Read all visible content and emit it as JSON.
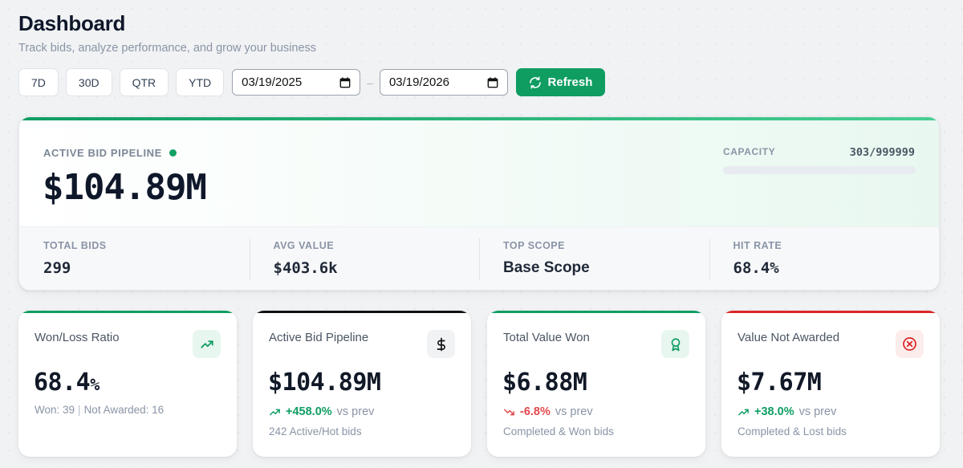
{
  "header": {
    "title": "Dashboard",
    "subtitle": "Track bids, analyze performance, and grow your business"
  },
  "toolbar": {
    "ranges": [
      "7D",
      "30D",
      "QTR",
      "YTD"
    ],
    "date_from": "03/19/2025",
    "date_separator": "–",
    "date_to": "03/19/2026",
    "refresh_label": "Refresh"
  },
  "hero": {
    "label": "ACTIVE BID PIPELINE",
    "value": "$104.89M",
    "capacity_label": "CAPACITY",
    "capacity_value": "303/999999",
    "capacity_fraction": 0.000303,
    "stats": [
      {
        "label": "TOTAL BIDS",
        "value": "299"
      },
      {
        "label": "AVG VALUE",
        "value": "$403.6k"
      },
      {
        "label": "TOP SCOPE",
        "value": "Base Scope"
      },
      {
        "label": "HIT RATE",
        "value": "68.4%"
      }
    ]
  },
  "cards": {
    "winloss": {
      "title": "Won/Loss Ratio",
      "value": "68.4",
      "value_suffix": "%",
      "won": "Won: 39",
      "divider": "|",
      "not_awarded": "Not Awarded: 16",
      "icon": "trending-up-icon",
      "accent": "#0f9d62"
    },
    "pipeline": {
      "title": "Active Bid Pipeline",
      "value": "$104.89M",
      "delta": "+458.0%",
      "delta_suffix": "vs prev",
      "note": "242 Active/Hot bids",
      "icon": "dollar-icon",
      "accent": "#111111"
    },
    "won": {
      "title": "Total Value Won",
      "value": "$6.88M",
      "delta": "-6.8%",
      "delta_suffix": "vs prev",
      "note": "Completed & Won bids",
      "icon": "award-icon",
      "accent": "#0f9d62"
    },
    "notawarded": {
      "title": "Value Not Awarded",
      "value": "$7.67M",
      "delta": "+38.0%",
      "delta_suffix": "vs prev",
      "note": "Completed & Lost bids",
      "icon": "x-circle-icon",
      "accent": "#dc2626"
    }
  },
  "colors": {
    "positive": "#0f9d62",
    "negative": "#e5484d",
    "brand": "#0f9d62"
  }
}
